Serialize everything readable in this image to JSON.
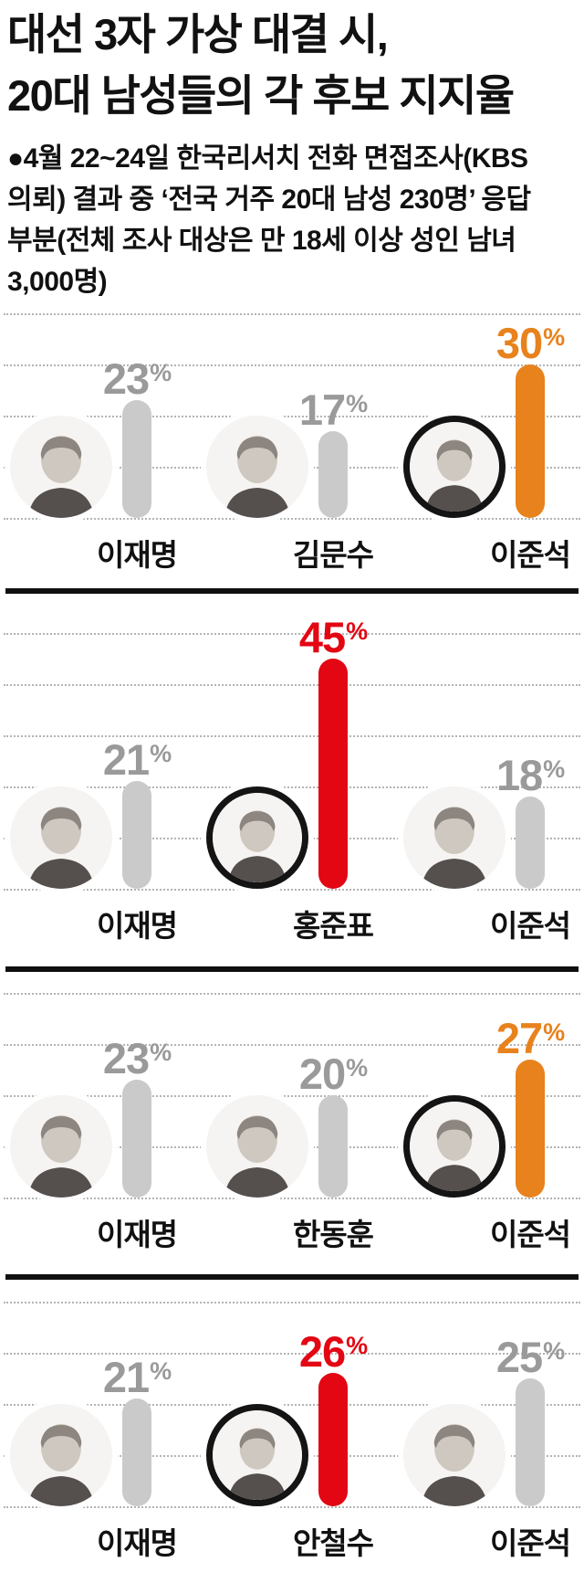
{
  "header": {
    "title_line1": "대선 3자 가상 대결 시,",
    "title_line2": "20대 남성들의 각 후보 지지율",
    "source_note": "●4월 22~24일 한국리서치 전화 면접조사(KBS 의뢰) 결과 중 ‘전국 거주 20대 남성 230명’ 응답 부분(전체 조사 대상은 만 18세 이상 성인 남녀 3,000명)"
  },
  "labels": {
    "percent": "%"
  },
  "colors": {
    "highlight_orange": "#e8821d",
    "highlight_red": "#e30613",
    "bar_gray": "#cacaca",
    "pct_label_gray": "#9a9a9a",
    "text_black": "#111111",
    "gridline_gray": "#b4b4b4"
  },
  "chart_data": [
    {
      "type": "bar",
      "unit": "%",
      "ylim": [
        0,
        40
      ],
      "gridline_step": 10,
      "gridlines": 5,
      "grid": "dotted",
      "candidates": [
        {
          "name": "이재명",
          "value": 23,
          "highlighted": false,
          "bar_color": "#cacaca",
          "label_color": "#9a9a9a"
        },
        {
          "name": "김문수",
          "value": 17,
          "highlighted": false,
          "bar_color": "#cacaca",
          "label_color": "#9a9a9a"
        },
        {
          "name": "이준석",
          "value": 30,
          "highlighted": true,
          "bar_color": "#e8821d",
          "label_color": "#e8821d"
        }
      ]
    },
    {
      "type": "bar",
      "unit": "%",
      "ylim": [
        0,
        50
      ],
      "gridline_step": 10,
      "gridlines": 6,
      "grid": "dotted",
      "candidates": [
        {
          "name": "이재명",
          "value": 21,
          "highlighted": false,
          "bar_color": "#cacaca",
          "label_color": "#9a9a9a"
        },
        {
          "name": "홍준표",
          "value": 45,
          "highlighted": true,
          "bar_color": "#e30613",
          "label_color": "#e30613"
        },
        {
          "name": "이준석",
          "value": 18,
          "highlighted": false,
          "bar_color": "#cacaca",
          "label_color": "#9a9a9a"
        }
      ]
    },
    {
      "type": "bar",
      "unit": "%",
      "ylim": [
        0,
        40
      ],
      "gridline_step": 10,
      "gridlines": 5,
      "grid": "dotted",
      "candidates": [
        {
          "name": "이재명",
          "value": 23,
          "highlighted": false,
          "bar_color": "#cacaca",
          "label_color": "#9a9a9a"
        },
        {
          "name": "한동훈",
          "value": 20,
          "highlighted": false,
          "bar_color": "#cacaca",
          "label_color": "#9a9a9a"
        },
        {
          "name": "이준석",
          "value": 27,
          "highlighted": true,
          "bar_color": "#e8821d",
          "label_color": "#e8821d"
        }
      ]
    },
    {
      "type": "bar",
      "unit": "%",
      "ylim": [
        0,
        40
      ],
      "gridline_step": 10,
      "gridlines": 5,
      "grid": "dotted",
      "candidates": [
        {
          "name": "이재명",
          "value": 21,
          "highlighted": false,
          "bar_color": "#cacaca",
          "label_color": "#9a9a9a"
        },
        {
          "name": "안철수",
          "value": 26,
          "highlighted": true,
          "bar_color": "#e30613",
          "label_color": "#e30613"
        },
        {
          "name": "이준석",
          "value": 25,
          "highlighted": false,
          "bar_color": "#cacaca",
          "label_color": "#9a9a9a"
        }
      ]
    }
  ]
}
